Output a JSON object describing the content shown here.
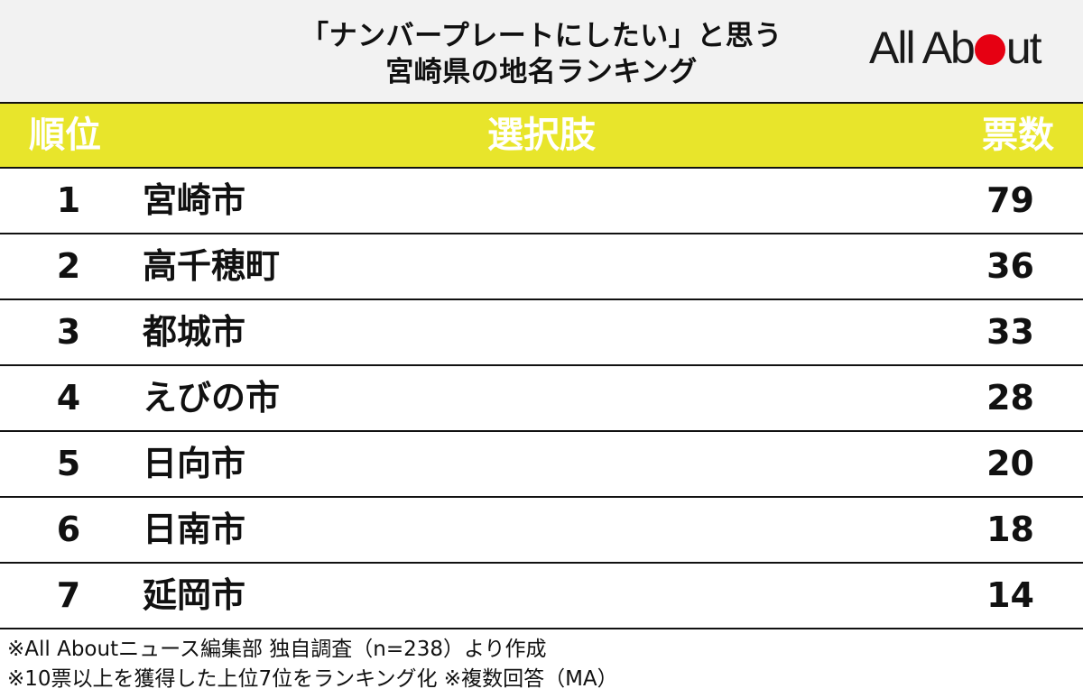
{
  "title": {
    "line1": "「ナンバープレートにしたい」と思う",
    "line2": "宮崎県の地名ランキング"
  },
  "logo": {
    "part1": "All Ab",
    "part2": "ut",
    "brand_color": "#e60012"
  },
  "table": {
    "header": {
      "rank": "順位",
      "choice": "選択肢",
      "votes": "票数"
    },
    "header_color": "#e8e52b",
    "rows": [
      {
        "rank": "1",
        "name": "宮崎市",
        "votes": "79"
      },
      {
        "rank": "2",
        "name": "高千穂町",
        "votes": "36"
      },
      {
        "rank": "3",
        "name": "都城市",
        "votes": "33"
      },
      {
        "rank": "4",
        "name": "えびの市",
        "votes": "28"
      },
      {
        "rank": "5",
        "name": "日向市",
        "votes": "20"
      },
      {
        "rank": "6",
        "name": "日南市",
        "votes": "18"
      },
      {
        "rank": "7",
        "name": "延岡市",
        "votes": "14"
      }
    ]
  },
  "notes": {
    "line1": "※All Aboutニュース編集部 独自調査（n=238）より作成",
    "line2": "※10票以上を獲得した上位7位をランキング化 ※複数回答（MA）"
  }
}
